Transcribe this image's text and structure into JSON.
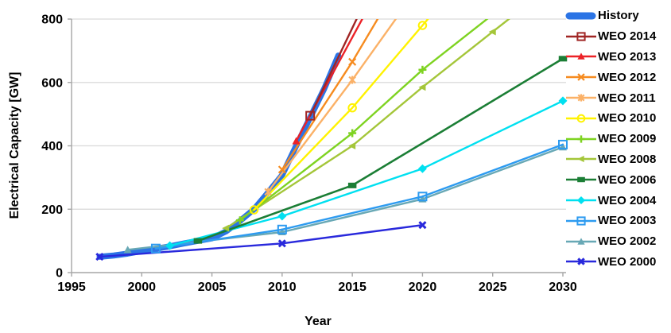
{
  "chart_data": {
    "type": "line",
    "title": "",
    "xlabel": "Year",
    "ylabel": "Electrical Capacity [GW]",
    "xlim": [
      1995,
      2030
    ],
    "ylim": [
      0,
      800
    ],
    "x_ticks": [
      1995,
      2000,
      2005,
      2010,
      2015,
      2020,
      2025,
      2030
    ],
    "y_ticks": [
      0,
      200,
      400,
      600,
      800
    ],
    "grid": "horizontal-only",
    "grid_color": "#D9D9D9",
    "axis_color": "#A6A6A6",
    "tick_label_color": "#000000",
    "legend_position": "right",
    "clip_at_ymax": true,
    "series": [
      {
        "name": "History",
        "color": "#2B74E5",
        "line_width": 7.5,
        "marker": "none",
        "points": [
          [
            1997,
            50
          ],
          [
            1998,
            54
          ],
          [
            1999,
            60
          ],
          [
            2000,
            68
          ],
          [
            2001,
            75
          ],
          [
            2002,
            83
          ],
          [
            2003,
            92
          ],
          [
            2004,
            100
          ],
          [
            2005,
            108
          ],
          [
            2006,
            130
          ],
          [
            2007,
            163
          ],
          [
            2008,
            200
          ],
          [
            2009,
            253
          ],
          [
            2010,
            308
          ],
          [
            2011,
            400
          ],
          [
            2012,
            490
          ],
          [
            2013,
            580
          ],
          [
            2014,
            685
          ]
        ]
      },
      {
        "name": "WEO 2014",
        "color": "#A02524",
        "line_width": 2.4,
        "marker": "square-open",
        "points": [
          [
            2012,
            495
          ],
          [
            2015.5,
            818
          ]
        ]
      },
      {
        "name": "WEO 2013",
        "color": "#EC2227",
        "line_width": 2.4,
        "marker": "triangle",
        "points": [
          [
            2011,
            415
          ],
          [
            2016,
            824
          ]
        ]
      },
      {
        "name": "WEO 2012",
        "color": "#F68B1F",
        "line_width": 2.4,
        "marker": "x",
        "points": [
          [
            2010,
            325
          ],
          [
            2015,
            665
          ],
          [
            2017,
            815
          ]
        ]
      },
      {
        "name": "WEO 2011",
        "color": "#FBB167",
        "line_width": 2.4,
        "marker": "asterisk",
        "points": [
          [
            2009,
            255
          ],
          [
            2015,
            608
          ],
          [
            2018.5,
            825
          ]
        ]
      },
      {
        "name": "WEO 2010",
        "color": "#FFF200",
        "line_width": 2.4,
        "marker": "circle-open",
        "points": [
          [
            2008,
            198
          ],
          [
            2015,
            520
          ],
          [
            2020,
            780
          ],
          [
            2021,
            832
          ]
        ]
      },
      {
        "name": "WEO 2009",
        "color": "#7ED321",
        "line_width": 2.4,
        "marker": "plus",
        "points": [
          [
            2007,
            165
          ],
          [
            2015,
            440
          ],
          [
            2020,
            640
          ],
          [
            2025,
            814
          ]
        ]
      },
      {
        "name": "WEO 2008",
        "color": "#A4C639",
        "line_width": 2.4,
        "marker": "triangle-left",
        "points": [
          [
            2006,
            140
          ],
          [
            2015,
            400
          ],
          [
            2020,
            585
          ],
          [
            2025,
            760
          ],
          [
            2026.5,
            812
          ]
        ]
      },
      {
        "name": "WEO 2006",
        "color": "#1B7E35",
        "line_width": 2.6,
        "marker": "square",
        "points": [
          [
            2004,
            100
          ],
          [
            2015,
            275
          ],
          [
            2030,
            675
          ]
        ]
      },
      {
        "name": "WEO 2004",
        "color": "#00E0F0",
        "line_width": 2.4,
        "marker": "diamond",
        "points": [
          [
            2002,
            85
          ],
          [
            2010,
            178
          ],
          [
            2020,
            328
          ],
          [
            2030,
            542
          ]
        ]
      },
      {
        "name": "WEO 2003",
        "color": "#2D9BF0",
        "line_width": 2.4,
        "marker": "square-open",
        "points": [
          [
            2001,
            76
          ],
          [
            2010,
            136
          ],
          [
            2020,
            240
          ],
          [
            2030,
            404
          ]
        ]
      },
      {
        "name": "WEO 2002",
        "color": "#68A8B5",
        "line_width": 2.4,
        "marker": "triangle",
        "points": [
          [
            1999,
            72
          ],
          [
            2010,
            128
          ],
          [
            2020,
            232
          ],
          [
            2030,
            396
          ]
        ]
      },
      {
        "name": "WEO 2000",
        "color": "#2929DC",
        "line_width": 2.4,
        "marker": "x-bold",
        "points": [
          [
            1997,
            50
          ],
          [
            2010,
            92
          ],
          [
            2020,
            150
          ]
        ]
      }
    ]
  }
}
